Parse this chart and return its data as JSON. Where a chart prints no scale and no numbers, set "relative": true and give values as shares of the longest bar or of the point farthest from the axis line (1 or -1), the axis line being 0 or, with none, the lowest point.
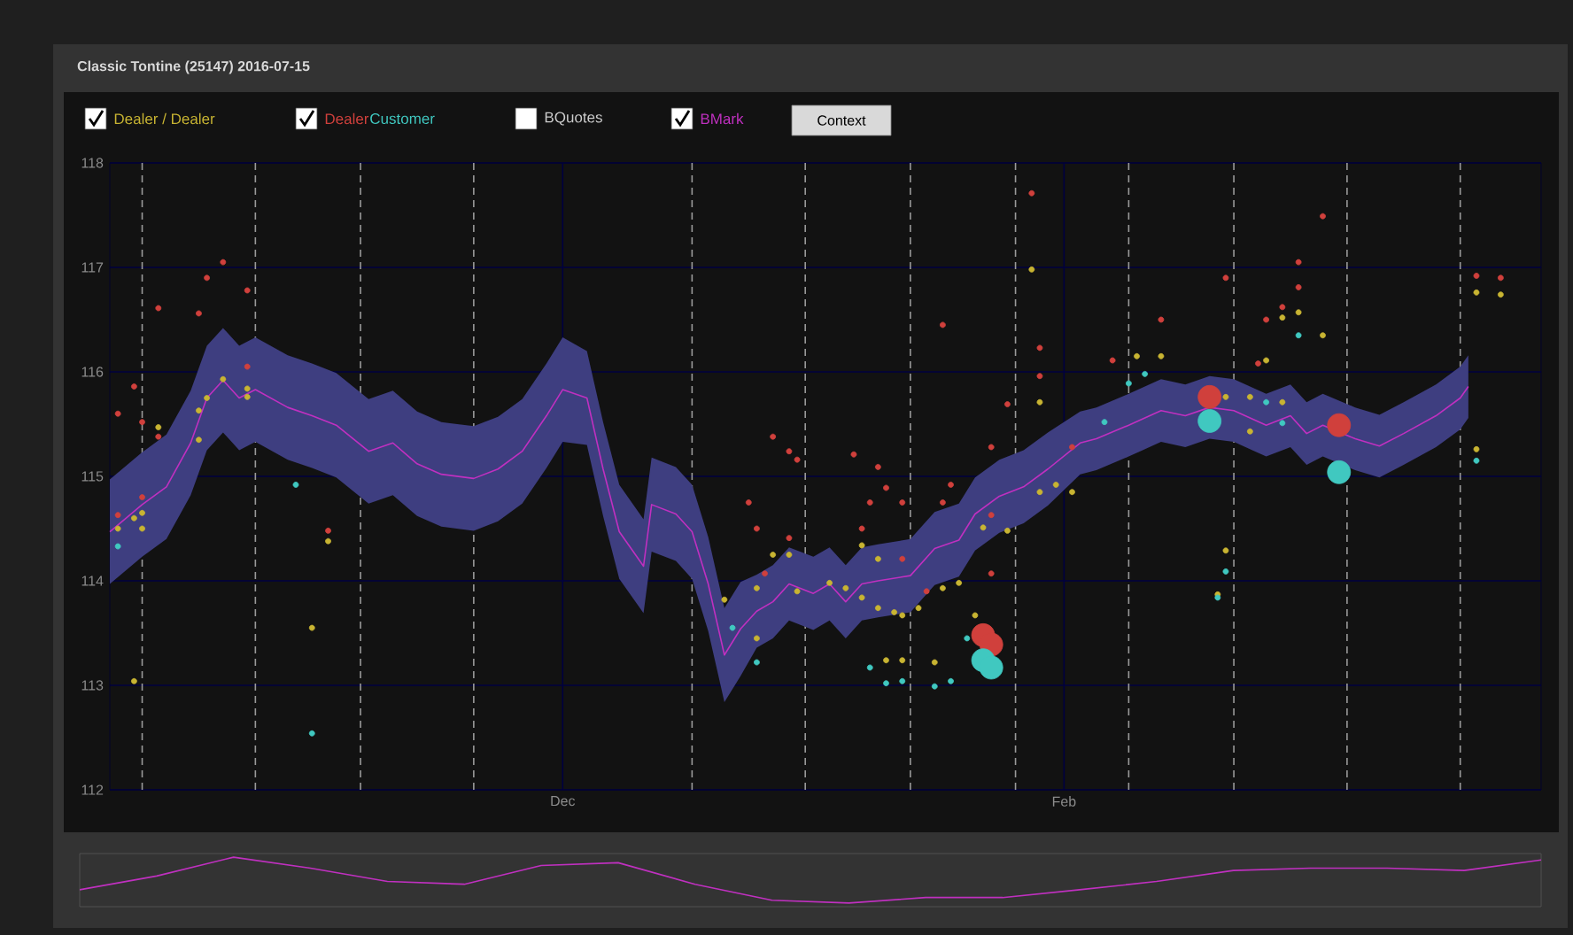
{
  "chart_data": [
    {
      "type": "line",
      "title": "Classic Tontine (25147) 2016-07-15",
      "xlim": [
        "2015-10-06",
        "2016-03-31"
      ],
      "xticks": [
        {
          "value": "2015-12-01",
          "label": "Dec"
        },
        {
          "value": "2016-02-01",
          "label": "Feb"
        }
      ],
      "ylim": [
        112,
        118
      ],
      "yticks": [
        112,
        113,
        114,
        115,
        116,
        117,
        118
      ],
      "grid": true,
      "legend": "top",
      "annotations": [
        "BQuotes",
        "Context"
      ],
      "ref_lines": [
        {
          "axis": "x",
          "value": "2015-10-10",
          "color": "#9a9a9a",
          "line_style": "dashed"
        },
        {
          "axis": "x",
          "value": "2015-10-24",
          "color": "#9a9a9a",
          "line_style": "dashed"
        },
        {
          "axis": "x",
          "value": "2015-11-06",
          "color": "#9a9a9a",
          "line_style": "dashed"
        },
        {
          "axis": "x",
          "value": "2015-11-20",
          "color": "#9a9a9a",
          "line_style": "dashed"
        },
        {
          "axis": "x",
          "value": "2015-12-17",
          "color": "#9a9a9a",
          "line_style": "dashed"
        },
        {
          "axis": "x",
          "value": "2015-12-31",
          "color": "#9a9a9a",
          "line_style": "dashed"
        },
        {
          "axis": "x",
          "value": "2016-01-13",
          "color": "#9a9a9a",
          "line_style": "dashed"
        },
        {
          "axis": "x",
          "value": "2016-01-26",
          "color": "#9a9a9a",
          "line_style": "dashed"
        },
        {
          "axis": "x",
          "value": "2016-02-09",
          "color": "#9a9a9a",
          "line_style": "dashed"
        },
        {
          "axis": "x",
          "value": "2016-02-22",
          "color": "#9a9a9a",
          "line_style": "dashed"
        },
        {
          "axis": "x",
          "value": "2016-03-07",
          "color": "#9a9a9a",
          "line_style": "dashed"
        },
        {
          "axis": "x",
          "value": "2016-03-21",
          "color": "#9a9a9a",
          "line_style": "dashed"
        }
      ],
      "series": [
        {
          "name": "Dealer / Dealer",
          "type": "scatter",
          "marker": "circle",
          "color": "#c8b432",
          "x": [
            "2015-10-20",
            "2015-10-18",
            "2015-10-17",
            "2015-10-12",
            "2015-10-17",
            "2015-10-10",
            "2015-10-09",
            "2015-10-07",
            "2015-10-10",
            "2015-10-23",
            "2015-10-23",
            "2015-11-02",
            "2015-10-31",
            "2015-10-09",
            "2015-12-21",
            "2015-12-25",
            "2015-12-25",
            "2015-12-27",
            "2015-12-29",
            "2015-12-30",
            "2016-01-03",
            "2016-01-05",
            "2016-01-07",
            "2016-01-09",
            "2016-01-11",
            "2016-01-12",
            "2016-01-14",
            "2016-01-17",
            "2016-01-19",
            "2016-01-22",
            "2016-01-25",
            "2016-01-29",
            "2016-01-31",
            "2016-02-02",
            "2016-01-28",
            "2016-01-29",
            "2016-02-10",
            "2016-02-13",
            "2016-02-21",
            "2016-02-24",
            "2016-02-24",
            "2016-02-28",
            "2016-02-28",
            "2016-03-01",
            "2016-03-04",
            "2016-02-26",
            "2016-02-21",
            "2016-02-20",
            "2016-01-10",
            "2016-01-12",
            "2016-01-16",
            "2016-01-21",
            "2016-03-23",
            "2016-03-26",
            "2016-03-23",
            "2016-01-07",
            "2016-01-09"
          ],
          "values": [
            115.93,
            115.75,
            115.63,
            115.47,
            115.35,
            114.65,
            114.6,
            114.5,
            114.5,
            115.84,
            115.76,
            114.38,
            113.55,
            113.04,
            113.82,
            113.45,
            113.93,
            114.25,
            114.25,
            113.9,
            113.98,
            113.93,
            113.84,
            113.74,
            113.7,
            113.67,
            113.74,
            113.93,
            113.98,
            114.51,
            114.48,
            114.85,
            114.92,
            114.85,
            116.98,
            115.71,
            116.15,
            116.15,
            115.76,
            115.76,
            115.43,
            115.71,
            116.52,
            116.57,
            116.35,
            116.11,
            114.29,
            113.87,
            113.24,
            113.24,
            113.22,
            113.67,
            116.76,
            116.74,
            115.26,
            114.34,
            114.21
          ]
        },
        {
          "name": "Dealer",
          "type": "scatter",
          "marker": "circle",
          "color": "#d0403c",
          "x": [
            "2015-10-12",
            "2015-10-17",
            "2015-10-18",
            "2015-10-20",
            "2015-10-23",
            "2015-10-09",
            "2015-10-07",
            "2015-10-10",
            "2015-10-12",
            "2015-10-10",
            "2015-10-07",
            "2015-10-23",
            "2015-11-02",
            "2015-12-27",
            "2015-12-29",
            "2015-12-30",
            "2015-12-24",
            "2015-12-25",
            "2015-12-26",
            "2015-12-29",
            "2016-01-28",
            "2016-01-17",
            "2016-01-25",
            "2016-01-06",
            "2016-01-09",
            "2016-01-10",
            "2016-01-12",
            "2016-01-08",
            "2016-01-07",
            "2016-01-17",
            "2016-01-18",
            "2016-01-23",
            "2016-01-29",
            "2016-01-29",
            "2016-02-02",
            "2016-02-13",
            "2016-02-07",
            "2016-02-21",
            "2016-03-01",
            "2016-03-01",
            "2016-03-04",
            "2016-02-26",
            "2016-02-28",
            "2016-02-25",
            "2016-03-23",
            "2016-03-26",
            "2016-01-23",
            "2016-01-23",
            "2016-01-15",
            "2016-01-12"
          ],
          "values": [
            116.61,
            116.56,
            116.9,
            117.05,
            116.78,
            115.86,
            115.6,
            115.52,
            115.38,
            114.8,
            114.63,
            116.05,
            114.48,
            115.38,
            115.24,
            115.16,
            114.75,
            114.5,
            114.07,
            114.41,
            117.71,
            116.45,
            115.69,
            115.21,
            115.09,
            114.89,
            114.75,
            114.75,
            114.5,
            114.75,
            114.92,
            115.28,
            116.23,
            115.96,
            115.28,
            116.5,
            116.11,
            116.9,
            117.05,
            116.81,
            117.49,
            116.5,
            116.62,
            116.08,
            116.92,
            116.9,
            114.63,
            114.07,
            113.9,
            114.21
          ]
        },
        {
          "name": "Customer",
          "type": "scatter",
          "marker": "circle",
          "color": "#40c8c0",
          "x": [
            "2015-10-07",
            "2015-10-29",
            "2015-10-31",
            "2015-12-22",
            "2015-12-25",
            "2016-01-08",
            "2016-01-10",
            "2016-01-12",
            "2016-01-16",
            "2016-01-18",
            "2016-01-20",
            "2016-02-06",
            "2016-02-09",
            "2016-02-11",
            "2016-02-21",
            "2016-02-20",
            "2016-03-01",
            "2016-02-26",
            "2016-02-28",
            "2016-03-23"
          ],
          "values": [
            114.33,
            114.92,
            112.54,
            113.55,
            113.22,
            113.17,
            113.02,
            113.04,
            112.99,
            113.04,
            113.45,
            115.52,
            115.89,
            115.98,
            114.09,
            113.84,
            116.35,
            115.71,
            115.51,
            115.15
          ]
        },
        {
          "type": "bubble",
          "marker": "circle",
          "color": "#d0403c",
          "x": [
            "2016-01-22",
            "2016-01-23",
            "2016-02-19",
            "2016-03-06"
          ],
          "values": [
            113.48,
            113.39,
            115.76,
            115.49
          ],
          "sizes": [
            1,
            1,
            1,
            1
          ]
        },
        {
          "type": "bubble",
          "marker": "circle",
          "color": "#40c8c0",
          "x": [
            "2016-01-22",
            "2016-01-23",
            "2016-02-19",
            "2016-03-06"
          ],
          "values": [
            113.24,
            113.17,
            115.53,
            115.04
          ],
          "sizes": [
            1,
            1,
            1,
            1
          ]
        },
        {
          "name": "BMark",
          "type": "line",
          "marker": "none",
          "color": "#c030c0",
          "x": [
            "2015-10-06",
            "2015-10-10",
            "2015-10-13",
            "2015-10-16",
            "2015-10-18",
            "2015-10-20",
            "2015-10-22",
            "2015-10-24",
            "2015-10-28",
            "2015-10-31",
            "2015-11-03",
            "2015-11-07",
            "2015-11-10",
            "2015-11-13",
            "2015-11-16",
            "2015-11-20",
            "2015-11-23",
            "2015-11-26",
            "2015-11-29",
            "2015-12-01",
            "2015-12-04",
            "2015-12-06",
            "2015-12-08",
            "2015-12-11",
            "2015-12-12",
            "2015-12-15",
            "2015-12-17",
            "2015-12-19",
            "2015-12-21",
            "2015-12-23",
            "2015-12-25",
            "2015-12-27",
            "2015-12-29",
            "2016-01-01",
            "2016-01-03",
            "2016-01-05",
            "2016-01-07",
            "2016-01-09",
            "2016-01-13",
            "2016-01-16",
            "2016-01-19",
            "2016-01-21",
            "2016-01-24",
            "2016-01-27",
            "2016-01-30",
            "2016-02-03",
            "2016-02-05",
            "2016-02-09",
            "2016-02-13",
            "2016-02-16",
            "2016-02-19",
            "2016-02-22",
            "2016-02-26",
            "2016-02-29",
            "2016-03-02",
            "2016-03-04",
            "2016-03-08",
            "2016-03-11",
            "2016-03-14",
            "2016-03-18",
            "2016-03-21",
            "2016-03-22"
          ],
          "values": [
            114.47,
            114.73,
            114.9,
            115.32,
            115.75,
            115.92,
            115.75,
            115.83,
            115.66,
            115.58,
            115.49,
            115.24,
            115.32,
            115.12,
            115.02,
            114.98,
            115.07,
            115.24,
            115.58,
            115.83,
            115.75,
            115.07,
            114.47,
            114.14,
            114.73,
            114.64,
            114.47,
            113.97,
            113.29,
            113.54,
            113.71,
            113.8,
            113.97,
            113.88,
            113.97,
            113.8,
            113.97,
            114.0,
            114.05,
            114.31,
            114.39,
            114.64,
            114.81,
            114.9,
            115.07,
            115.32,
            115.36,
            115.49,
            115.63,
            115.58,
            115.66,
            115.63,
            115.49,
            115.58,
            115.41,
            115.49,
            115.36,
            115.29,
            115.41,
            115.58,
            115.75,
            115.86
          ],
          "lower": [
            113.97,
            114.23,
            114.4,
            114.82,
            115.25,
            115.42,
            115.25,
            115.33,
            115.16,
            115.08,
            114.99,
            114.74,
            114.82,
            114.62,
            114.52,
            114.48,
            114.57,
            114.74,
            115.08,
            115.33,
            115.3,
            114.62,
            114.02,
            113.69,
            114.28,
            114.19,
            114.02,
            113.52,
            112.84,
            113.09,
            113.36,
            113.45,
            113.62,
            113.53,
            113.62,
            113.45,
            113.62,
            113.65,
            113.7,
            113.96,
            114.04,
            114.29,
            114.46,
            114.55,
            114.72,
            115.02,
            115.06,
            115.19,
            115.33,
            115.28,
            115.36,
            115.33,
            115.19,
            115.28,
            115.11,
            115.19,
            115.06,
            114.99,
            115.11,
            115.28,
            115.45,
            115.56
          ],
          "upper": [
            114.97,
            115.23,
            115.4,
            115.82,
            116.25,
            116.42,
            116.25,
            116.33,
            116.16,
            116.08,
            115.99,
            115.74,
            115.82,
            115.62,
            115.52,
            115.48,
            115.57,
            115.74,
            116.08,
            116.33,
            116.2,
            115.52,
            114.92,
            114.59,
            115.18,
            115.09,
            114.92,
            114.42,
            113.74,
            113.99,
            114.06,
            114.15,
            114.32,
            114.23,
            114.32,
            114.15,
            114.32,
            114.35,
            114.4,
            114.66,
            114.74,
            114.99,
            115.16,
            115.25,
            115.42,
            115.62,
            115.66,
            115.79,
            115.93,
            115.88,
            115.96,
            115.93,
            115.79,
            115.88,
            115.71,
            115.79,
            115.66,
            115.59,
            115.71,
            115.88,
            116.05,
            116.16
          ]
        }
      ]
    },
    {
      "type": "line",
      "relative": true,
      "color": "#c030c0",
      "categories": [
        null,
        null,
        null,
        null,
        null,
        null,
        null,
        null,
        null,
        null,
        null,
        null,
        null,
        null,
        null,
        null,
        null,
        null,
        null,
        null
      ],
      "values": [
        0.29,
        0.59,
        1.0,
        0.76,
        0.47,
        0.41,
        0.82,
        0.88,
        0.41,
        0.06,
        0,
        0.12,
        0.12,
        0.29,
        0.47,
        0.71,
        0.76,
        0.76,
        0.71,
        0.94
      ]
    }
  ]
}
